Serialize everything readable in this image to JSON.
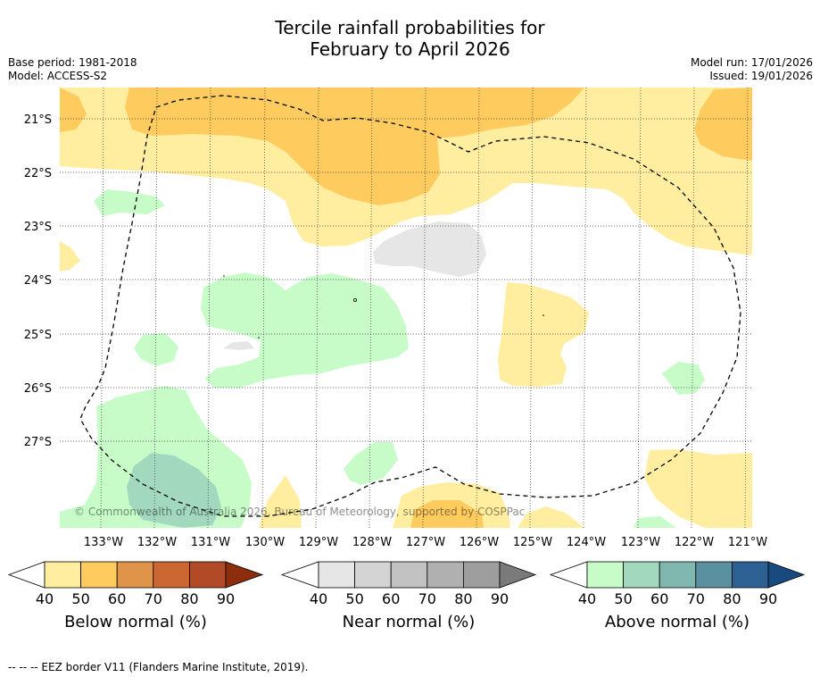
{
  "title_line1": "Tercile rainfall probabilities for",
  "title_line2": "February to April 2026",
  "base_period": "Base period: 1981-2018",
  "model": "Model: ACCESS-S2",
  "model_run": "Model run: 17/01/2026",
  "issued": "Issued: 19/01/2026",
  "map": {
    "lat_labels": [
      "21°S",
      "22°S",
      "23°S",
      "24°S",
      "25°S",
      "26°S",
      "27°S"
    ],
    "lon_labels": [
      "133°W",
      "132°W",
      "131°W",
      "130°W",
      "129°W",
      "128°W",
      "127°W",
      "126°W",
      "125°W",
      "124°W",
      "123°W",
      "122°W",
      "121°W"
    ],
    "copyright": "© Commonwealth of Australia 2026, Bureau of Meteorology, supported by COSPPac"
  },
  "colorbars": [
    {
      "label": "Below normal (%)",
      "ticks": [
        "40",
        "50",
        "60",
        "70",
        "80",
        "90"
      ],
      "colors": [
        "#ffeda0",
        "#fecb5e",
        "#e0944a",
        "#cc6633",
        "#b24a28",
        "#8c2d0e"
      ]
    },
    {
      "label": "Near normal (%)",
      "ticks": [
        "40",
        "50",
        "60",
        "70",
        "80",
        "90"
      ],
      "colors": [
        "#e6e6e6",
        "#d4d4d4",
        "#c2c2c2",
        "#b0b0b0",
        "#9e9e9e",
        "#7a7a7a"
      ]
    },
    {
      "label": "Above normal (%)",
      "ticks": [
        "40",
        "50",
        "60",
        "70",
        "80",
        "90"
      ],
      "colors": [
        "#c7fcc9",
        "#a2d9be",
        "#80b8b0",
        "#5a90a0",
        "#2d6193",
        "#184a80"
      ]
    }
  ],
  "footnote": "--  --  -- EEZ border V11 (Flanders Marine Institute, 2019)."
}
